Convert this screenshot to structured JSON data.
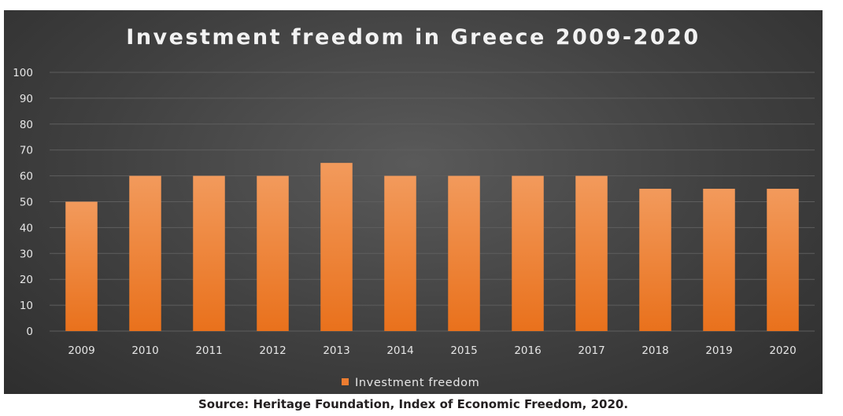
{
  "chart_data": {
    "type": "bar",
    "title": "Investment freedom in Greece 2009-2020",
    "categories": [
      "2009",
      "2010",
      "2011",
      "2012",
      "2013",
      "2014",
      "2015",
      "2016",
      "2017",
      "2018",
      "2019",
      "2020"
    ],
    "series": [
      {
        "name": "Investment freedom",
        "values": [
          50,
          60,
          60,
          60,
          65,
          60,
          60,
          60,
          60,
          55,
          55,
          55
        ],
        "color": "#ed7d31"
      }
    ],
    "ylim": [
      0,
      100
    ],
    "yticks": [
      0,
      10,
      20,
      30,
      40,
      50,
      60,
      70,
      80,
      90,
      100
    ],
    "grid": true,
    "legend_position": "bottom",
    "colors": {
      "background": "#404040",
      "bar_top": "#f29a5c",
      "bar_bottom": "#e9711c",
      "text": "#e6e6e6"
    }
  },
  "source_note": "Source: Heritage Foundation, Index of Economic Freedom, 2020."
}
